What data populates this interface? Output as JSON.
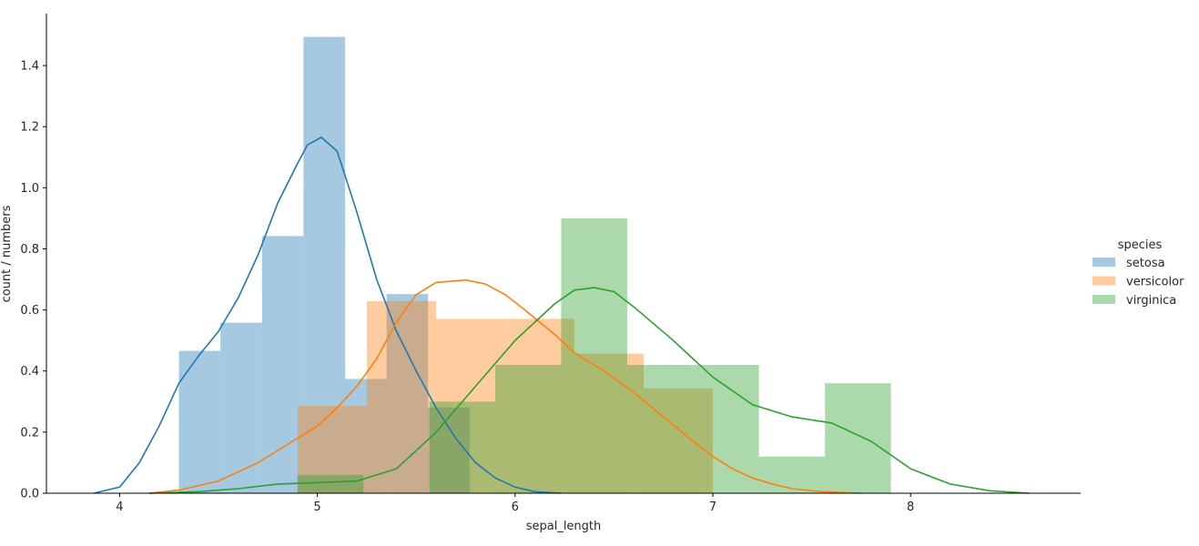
{
  "chart_data": {
    "type": "bar",
    "title": "",
    "xlabel": "sepal_length",
    "ylabel": "count / numbers",
    "xlim": [
      3.63,
      8.86
    ],
    "ylim": [
      0,
      1.57
    ],
    "xticks": [
      "4",
      "5",
      "6",
      "7",
      "8"
    ],
    "yticks": [
      "0.0",
      "0.2",
      "0.4",
      "0.6",
      "0.8",
      "1.0",
      "1.2",
      "1.4"
    ],
    "grid": false,
    "legend": {
      "title": "species",
      "placement": "right"
    },
    "series": [
      {
        "name": "setosa",
        "color": "#1f77b4",
        "bin_edges": [
          4.3,
          4.51,
          4.72,
          4.93,
          5.14,
          5.35,
          5.56,
          5.77
        ],
        "values": [
          0.466,
          0.558,
          0.842,
          1.494,
          0.374,
          0.652,
          0.281
        ],
        "kde_x": [
          3.87,
          4.0,
          4.1,
          4.2,
          4.3,
          4.4,
          4.5,
          4.6,
          4.7,
          4.8,
          4.9,
          4.95,
          5.02,
          5.1,
          5.2,
          5.3,
          5.4,
          5.5,
          5.6,
          5.7,
          5.8,
          5.9,
          6.0,
          6.1,
          6.23
        ],
        "kde_y": [
          0.0,
          0.02,
          0.1,
          0.22,
          0.36,
          0.45,
          0.53,
          0.64,
          0.78,
          0.95,
          1.08,
          1.14,
          1.165,
          1.12,
          0.92,
          0.7,
          0.53,
          0.4,
          0.28,
          0.18,
          0.1,
          0.05,
          0.02,
          0.005,
          0.0
        ]
      },
      {
        "name": "versicolor",
        "color": "#ff7f0e",
        "bin_edges": [
          4.9,
          5.25,
          5.6,
          5.95,
          6.3,
          6.65,
          7.0
        ],
        "values": [
          0.286,
          0.629,
          0.571,
          0.571,
          0.457,
          0.343
        ],
        "kde_x": [
          4.15,
          4.3,
          4.5,
          4.7,
          4.9,
          5.0,
          5.1,
          5.2,
          5.3,
          5.4,
          5.5,
          5.6,
          5.75,
          5.85,
          5.95,
          6.05,
          6.2,
          6.3,
          6.45,
          6.6,
          6.75,
          6.9,
          7.0,
          7.1,
          7.2,
          7.3,
          7.4,
          7.55,
          7.75
        ],
        "kde_y": [
          0.0,
          0.01,
          0.04,
          0.1,
          0.18,
          0.22,
          0.28,
          0.35,
          0.44,
          0.56,
          0.65,
          0.69,
          0.698,
          0.685,
          0.65,
          0.6,
          0.52,
          0.46,
          0.4,
          0.33,
          0.25,
          0.17,
          0.12,
          0.08,
          0.05,
          0.03,
          0.015,
          0.005,
          0.0
        ]
      },
      {
        "name": "virginica",
        "color": "#2ca02c",
        "bin_edges": [
          4.9,
          5.233,
          5.567,
          5.9,
          6.233,
          6.567,
          6.9,
          7.233,
          7.567,
          7.9
        ],
        "values": [
          0.06,
          0.0,
          0.3,
          0.42,
          0.9,
          0.42,
          0.42,
          0.12,
          0.36
        ],
        "kde_x": [
          4.15,
          4.4,
          4.6,
          4.8,
          5.0,
          5.2,
          5.4,
          5.6,
          5.8,
          6.0,
          6.2,
          6.3,
          6.4,
          6.5,
          6.6,
          6.8,
          7.0,
          7.2,
          7.4,
          7.6,
          7.8,
          8.0,
          8.2,
          8.4,
          8.6
        ],
        "kde_y": [
          0.0,
          0.005,
          0.015,
          0.03,
          0.035,
          0.04,
          0.08,
          0.2,
          0.35,
          0.5,
          0.62,
          0.665,
          0.673,
          0.66,
          0.61,
          0.5,
          0.38,
          0.29,
          0.25,
          0.23,
          0.17,
          0.08,
          0.03,
          0.008,
          0.0
        ]
      }
    ]
  }
}
